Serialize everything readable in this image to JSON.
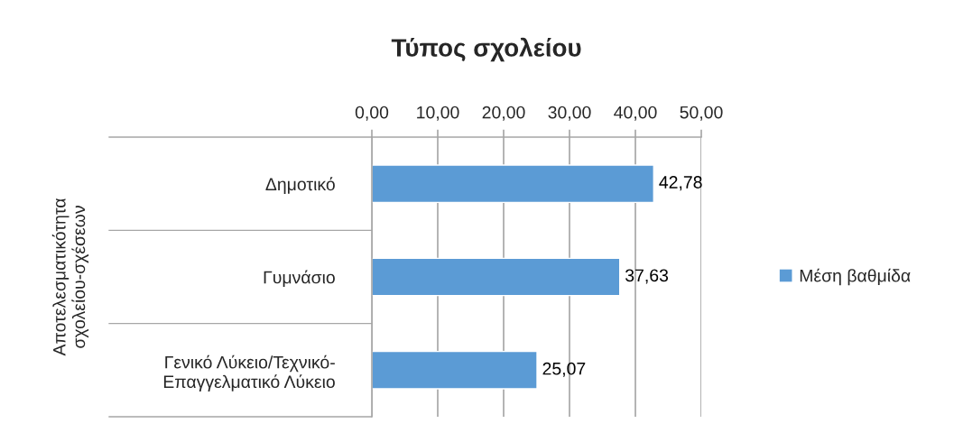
{
  "chart_data": {
    "type": "bar",
    "orientation": "horizontal",
    "title": "Τύπος σχολείου",
    "ylabel": "Αποτελεσματικότητα σχολείου-σχέσεων",
    "categories": [
      "Δημοτικό",
      "Γυμνάσιο",
      "Γενικό Λύκειο/Τεχνικό-Επαγγελματικό Λύκειο"
    ],
    "series": [
      {
        "name": "Μέση βαθμίδα",
        "color": "#5b9bd5",
        "values": [
          42.78,
          37.63,
          25.07
        ],
        "value_labels": [
          "42,78",
          "37,63",
          "25,07"
        ]
      }
    ],
    "xlim": [
      0,
      50
    ],
    "xticks": [
      {
        "value": 0,
        "label": "0,00"
      },
      {
        "value": 10,
        "label": "10,00"
      },
      {
        "value": 20,
        "label": "20,00"
      },
      {
        "value": 30,
        "label": "30,00"
      },
      {
        "value": 40,
        "label": "40,00"
      },
      {
        "value": 50,
        "label": "50,00"
      }
    ],
    "grid": "x",
    "legend": "right"
  }
}
